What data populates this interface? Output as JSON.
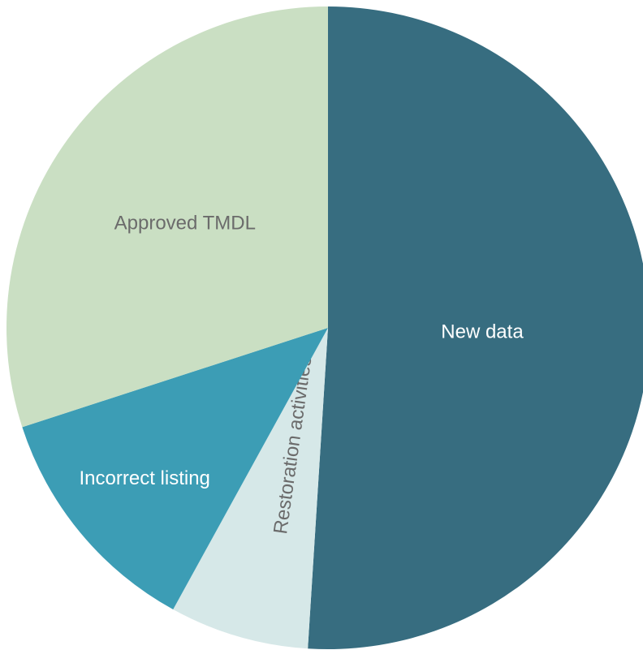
{
  "chart_data": {
    "type": "pie",
    "categories": [
      "New data",
      "Restoration activities",
      "Incorrect listing",
      "Approved TMDL"
    ],
    "values": [
      51,
      7,
      12,
      30
    ],
    "colors": [
      "#376d80",
      "#d6e8e8",
      "#3c9db5",
      "#cadfc3"
    ]
  }
}
